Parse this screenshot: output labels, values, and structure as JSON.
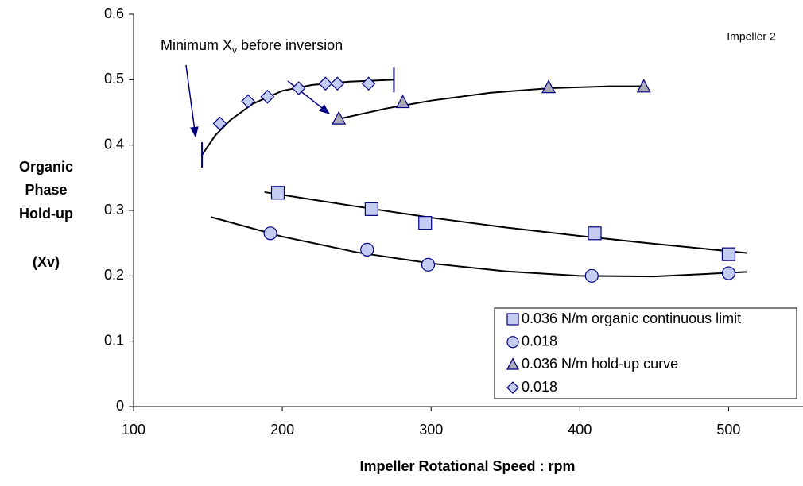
{
  "chart_data": {
    "type": "scatter",
    "annotation": {
      "text": "Minimum X",
      "sub": "v",
      "tail": " before inversion"
    },
    "note": "Impeller 2",
    "ylabel": [
      "Organic",
      "Phase",
      "Hold-up",
      "(Xv)"
    ],
    "xlabel": "Impeller Rotational Speed : rpm",
    "xlim": [
      100,
      550
    ],
    "xticks": [
      100,
      200,
      300,
      400,
      500
    ],
    "ylim": [
      0,
      0.6
    ],
    "yticks": [
      0,
      0.1,
      0.2,
      0.3,
      0.4,
      0.5,
      0.6
    ],
    "series": [
      {
        "name": "0.036 N/m organic continuous limit",
        "marker": "square",
        "color": "#c4ccf2",
        "x": [
          197,
          260,
          296,
          410,
          500
        ],
        "values": [
          0.327,
          0.302,
          0.281,
          0.265,
          0.233
        ]
      },
      {
        "name": "0.018",
        "marker": "circle",
        "color": "#c4ccf2",
        "x": [
          192,
          257,
          298,
          408,
          500
        ],
        "values": [
          0.265,
          0.24,
          0.217,
          0.2,
          0.204
        ]
      },
      {
        "name": "0.036 N/m hold-up curve",
        "marker": "triangle",
        "color": "#a8a8b8",
        "x": [
          238,
          281,
          379,
          443
        ],
        "values": [
          0.44,
          0.465,
          0.488,
          0.489
        ]
      },
      {
        "name": "0.018",
        "marker": "diamond",
        "color": "#c4ccf2",
        "x": [
          158,
          177,
          190,
          211,
          229,
          237,
          258
        ],
        "values": [
          0.433,
          0.467,
          0.474,
          0.487,
          0.494,
          0.494,
          0.494
        ]
      }
    ],
    "trendlines": [
      {
        "x": [
          188,
          250,
          300,
          350,
          400,
          450,
          512
        ],
        "values": [
          0.328,
          0.306,
          0.289,
          0.274,
          0.261,
          0.249,
          0.235
        ]
      },
      {
        "x": [
          152,
          200,
          250,
          300,
          350,
          400,
          450,
          512
        ],
        "values": [
          0.29,
          0.26,
          0.236,
          0.219,
          0.207,
          0.2,
          0.199,
          0.206
        ]
      },
      {
        "x": [
          238,
          270,
          300,
          340,
          380,
          420,
          443
        ],
        "values": [
          0.44,
          0.456,
          0.468,
          0.48,
          0.487,
          0.49,
          0.49
        ]
      },
      {
        "x": [
          146,
          155,
          165,
          180,
          200,
          220,
          245,
          275
        ],
        "values": [
          0.385,
          0.415,
          0.438,
          0.463,
          0.483,
          0.492,
          0.497,
          0.5
        ],
        "end_marks": true
      }
    ]
  }
}
